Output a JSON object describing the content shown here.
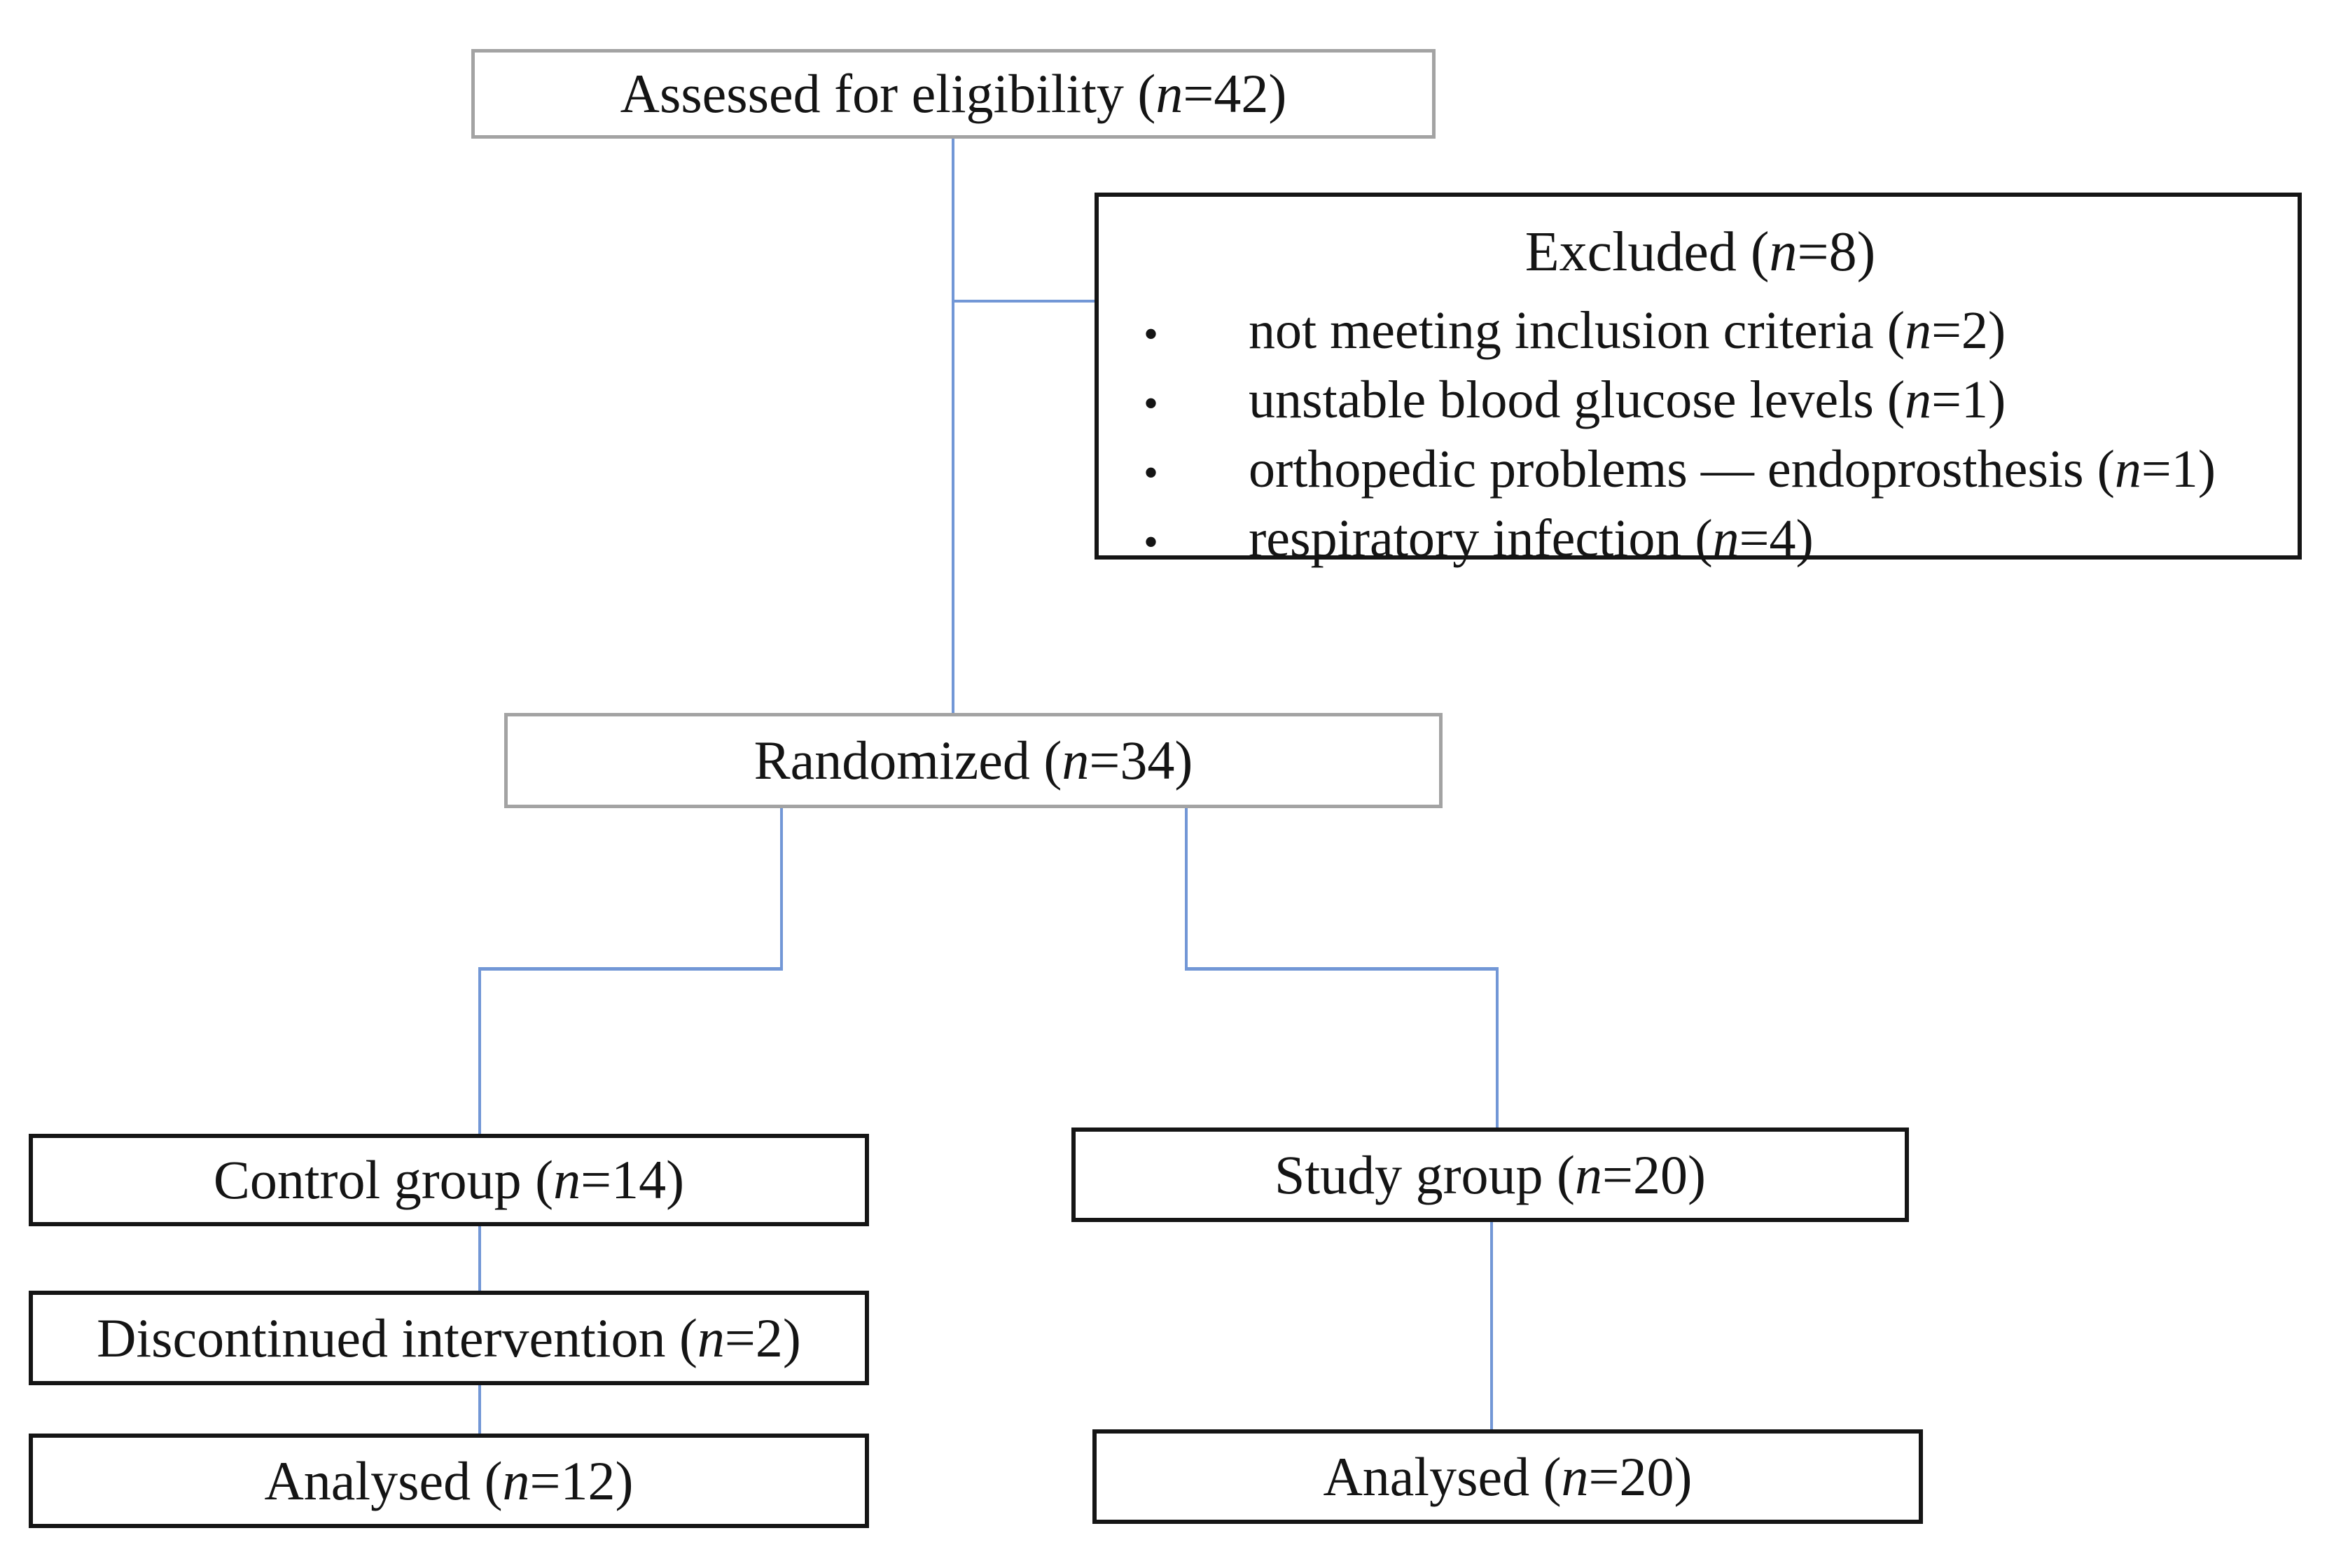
{
  "diagram": {
    "type": "consort-flow",
    "colors": {
      "background": "#ffffff",
      "connector_blue": "#7297d6",
      "box_border_black": "#151515",
      "box_border_gray": "#a3a3a3",
      "text": "#141414"
    },
    "nodes": {
      "assessed": {
        "text": "Assessed for eligibility (n=42)"
      },
      "excluded": {
        "title": "Excluded (n=8)",
        "bullet": "•",
        "items": [
          "not meeting inclusion criteria (n=2)",
          "unstable blood glucose levels (n=1)",
          "orthopedic problems — endoprosthesis (n=1)",
          "respiratory infection (n=4)"
        ]
      },
      "randomized": {
        "text": "Randomized (n=34)"
      },
      "control": {
        "text": "Control group (n=14)"
      },
      "study": {
        "text": "Study group (n=20)"
      },
      "discontinued": {
        "text": "Discontinued intervention (n=2)"
      },
      "analysed_control": {
        "text": "Analysed (n=12)"
      },
      "analysed_study": {
        "text": "Analysed (n=20)"
      }
    }
  }
}
